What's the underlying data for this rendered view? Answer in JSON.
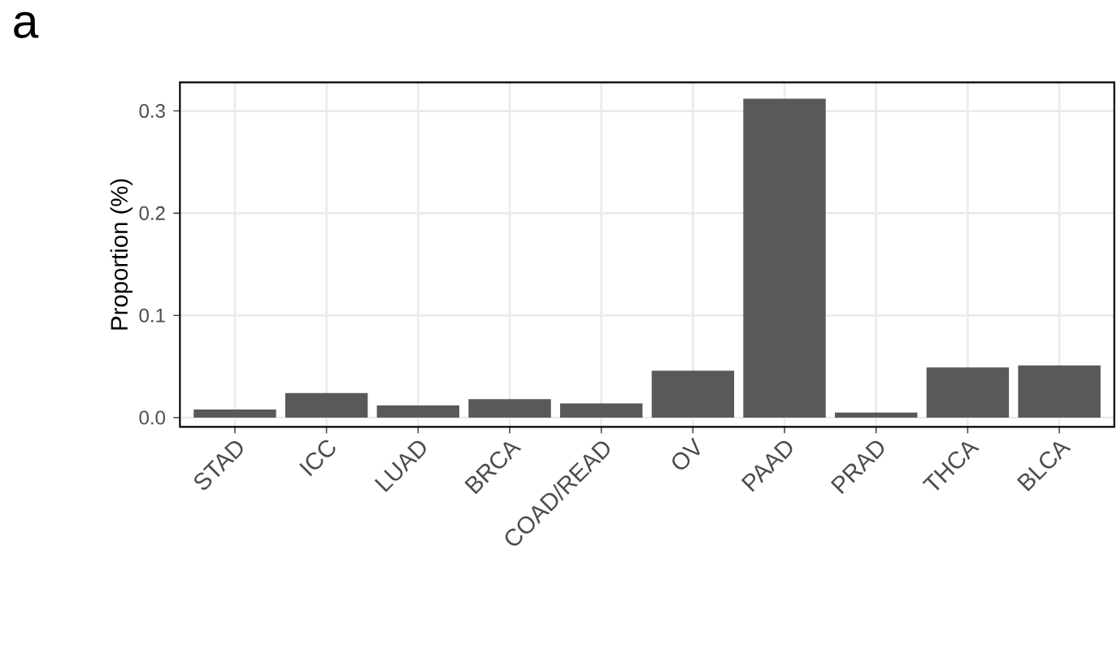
{
  "chart_data": {
    "type": "bar",
    "title": "a",
    "ylabel": "Proportion (%)",
    "categories": [
      "STAD",
      "ICC",
      "LUAD",
      "BRCA",
      "COAD/READ",
      "OV",
      "PAAD",
      "PRAD",
      "THCA",
      "BLCA"
    ],
    "values": [
      0.008,
      0.024,
      0.012,
      0.018,
      0.014,
      0.046,
      0.312,
      0.005,
      0.049,
      0.051
    ],
    "color": "#595959",
    "ylim": [
      -0.009,
      0.328
    ],
    "yticks": [
      {
        "value": 0,
        "label": "0.0"
      },
      {
        "value": 0.1,
        "label": "0.1"
      },
      {
        "value": 0.2,
        "label": "0.2"
      },
      {
        "value": 0.3,
        "label": "0.3"
      }
    ],
    "grid": true
  }
}
